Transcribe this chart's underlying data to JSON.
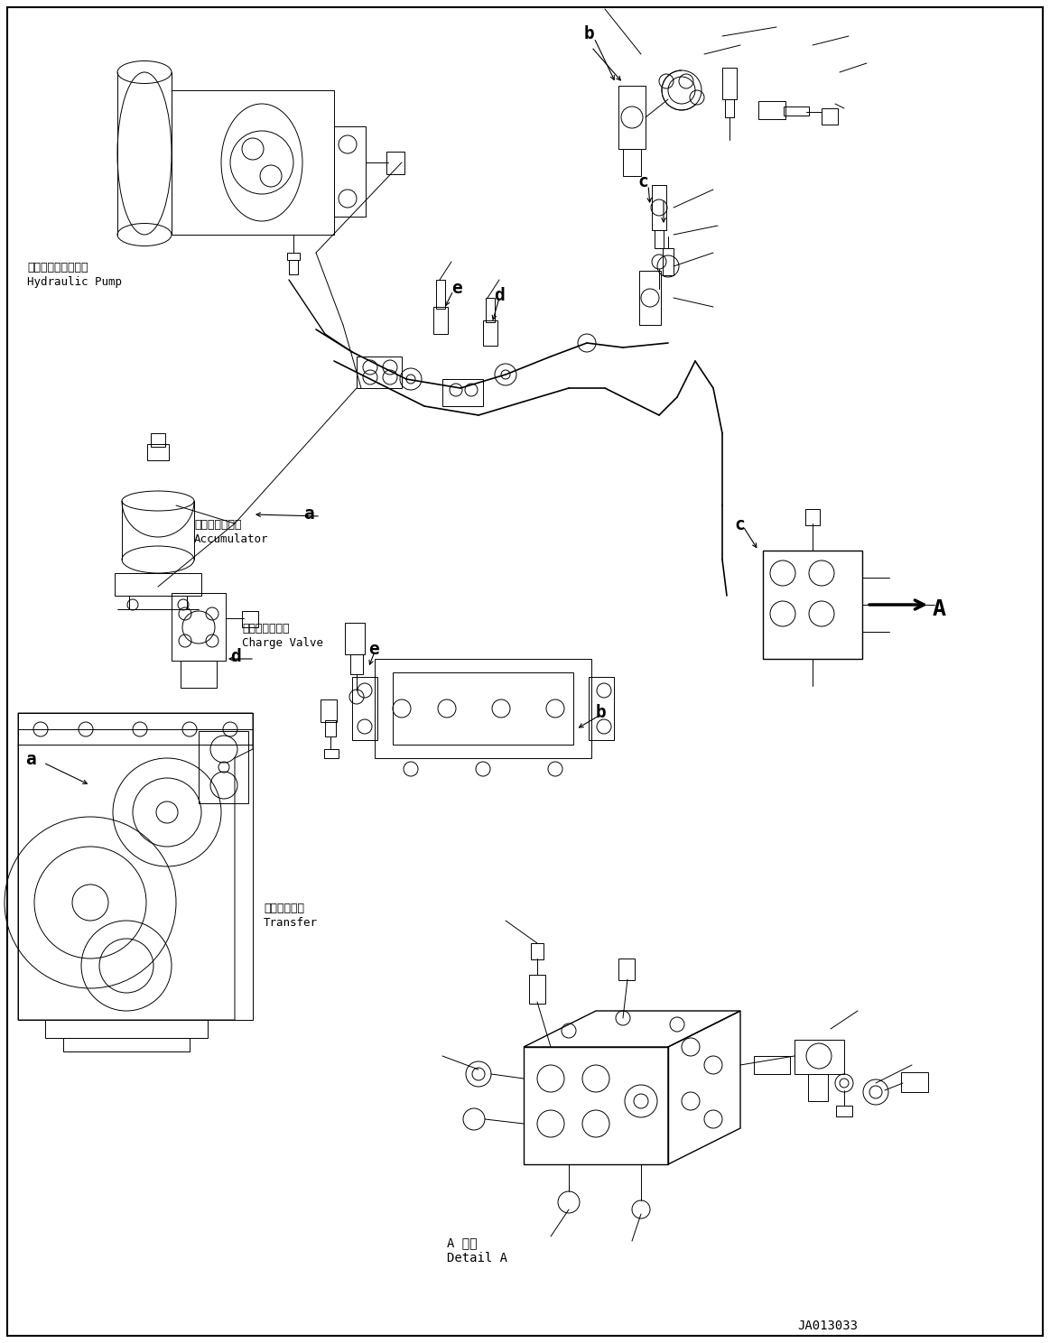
{
  "bg_color": "#ffffff",
  "fig_width": 11.63,
  "fig_height": 14.88,
  "dpi": 100,
  "labels": {
    "hydraulic_pump_jp": "作業機用油圧ポンプ",
    "hydraulic_pump_en": "Hydraulic Pump",
    "accumulator_jp": "アキュムレータ",
    "accumulator_en": "Accumulator",
    "charge_valve_jp": "チャージバルブ",
    "charge_valve_en": "Charge Valve",
    "transfer_jp": "トランスファ",
    "transfer_en": "Transfer",
    "detail_a_jp": "A 詳細",
    "detail_a_en": "Detail A",
    "code": "JA013033"
  }
}
